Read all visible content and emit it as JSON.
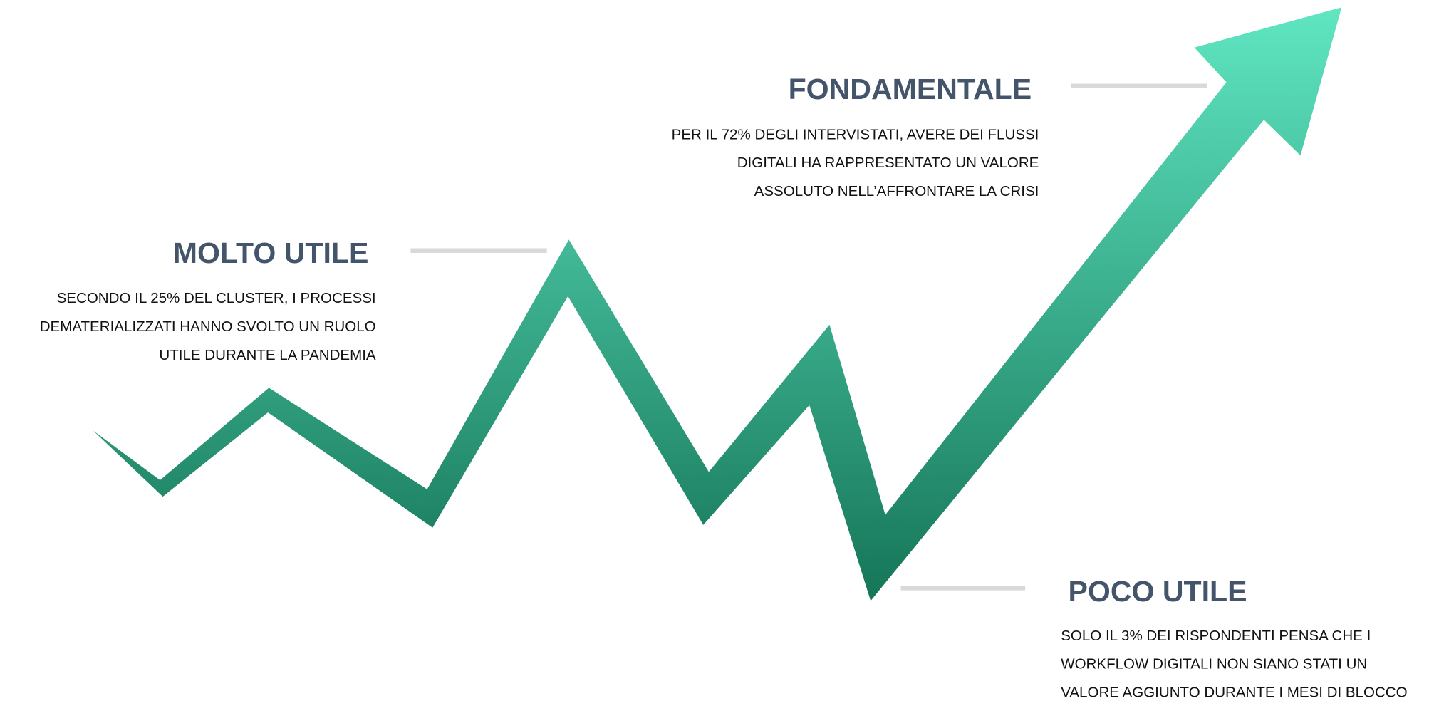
{
  "blocks": [
    {
      "title": "MOLTO UTILE",
      "lines": [
        "SECONDO IL 25% DEL CLUSTER, I PROCESSI",
        "DEMATERIALIZZATI HANNO SVOLTO UN RUOLO",
        "UTILE DURANTE LA PANDEMIA"
      ]
    },
    {
      "title": "FONDAMENTALE",
      "lines": [
        "PER IL 72% DEGLI INTERVISTATI, AVERE DEI FLUSSI",
        "DIGITALI HA RAPPRESENTATO UN VALORE",
        "ASSOLUTO NELL’AFFRONTARE LA CRISI"
      ]
    },
    {
      "title": "POCO UTILE",
      "lines": [
        "SOLO IL 3% DEI RISPONDENTI PENSA CHE I",
        "WORKFLOW DIGITALI NON SIANO STATI UN",
        "VALORE AGGIUNTO DURANTE I MESI DI BLOCCO"
      ]
    }
  ]
}
